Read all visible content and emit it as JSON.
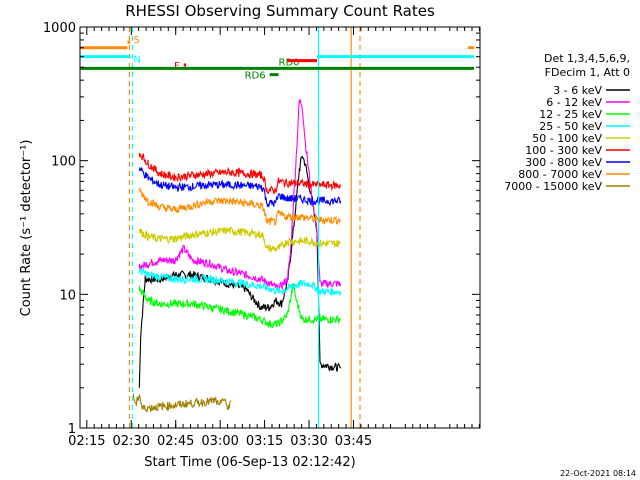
{
  "chart_data": {
    "type": "line",
    "title": "RHESSI Observing Summary Count Rates",
    "xlabel": "Start Time (06-Sep-13 02:12:42)",
    "ylabel": "Count Rate (s⁻¹ detector⁻¹)",
    "yscale": "log",
    "ylim": [
      1,
      1000
    ],
    "xlim_minutes": [
      0,
      135
    ],
    "x_ticks": [
      {
        "label": "02:15",
        "minute": 2.3
      },
      {
        "label": "02:30",
        "minute": 17.3
      },
      {
        "label": "02:45",
        "minute": 32.3
      },
      {
        "label": "03:00",
        "minute": 47.3
      },
      {
        "label": "03:15",
        "minute": 62.3
      },
      {
        "label": "03:30",
        "minute": 77.3
      },
      {
        "label": "03:45",
        "minute": 92.3
      }
    ],
    "y_ticks": [
      {
        "label": "1",
        "value": 1
      },
      {
        "label": "10",
        "value": 10
      },
      {
        "label": "100",
        "value": 100
      },
      {
        "label": "1000",
        "value": 1000
      }
    ],
    "legend_header": [
      "Det 1,3,4,5,6,9,",
      "FDecim 1, Att 0"
    ],
    "series": [
      {
        "name": "3 - 6 keV",
        "color": "#000000",
        "points": [
          [
            20,
            2
          ],
          [
            20.5,
            5
          ],
          [
            22,
            13
          ],
          [
            27,
            13
          ],
          [
            32,
            14
          ],
          [
            38,
            14
          ],
          [
            44,
            13
          ],
          [
            50,
            12
          ],
          [
            56,
            11
          ],
          [
            58,
            9.5
          ],
          [
            61,
            8
          ],
          [
            64,
            8
          ],
          [
            66,
            9
          ],
          [
            68,
            8.5
          ],
          [
            70,
            12
          ],
          [
            72,
            30
          ],
          [
            74,
            85
          ],
          [
            75,
            110
          ],
          [
            76,
            95
          ],
          [
            78,
            55
          ],
          [
            80,
            30
          ],
          [
            81,
            3
          ],
          [
            88,
            2.8
          ]
        ]
      },
      {
        "name": "6 - 12 keV",
        "color": "#ff00ff",
        "points": [
          [
            20,
            16
          ],
          [
            23,
            17
          ],
          [
            27,
            18
          ],
          [
            32,
            18
          ],
          [
            35,
            22
          ],
          [
            38,
            18
          ],
          [
            44,
            17
          ],
          [
            50,
            15
          ],
          [
            56,
            14
          ],
          [
            61,
            13
          ],
          [
            64,
            12
          ],
          [
            67,
            11
          ],
          [
            70,
            13
          ],
          [
            71,
            20
          ],
          [
            73,
            110
          ],
          [
            74,
            280
          ],
          [
            75,
            260
          ],
          [
            76,
            140
          ],
          [
            78,
            60
          ],
          [
            80,
            30
          ],
          [
            81,
            12
          ],
          [
            88,
            12
          ]
        ]
      },
      {
        "name": "12 - 25 keV",
        "color": "#00ff00",
        "points": [
          [
            20,
            11
          ],
          [
            23,
            9
          ],
          [
            27,
            8.5
          ],
          [
            32,
            8.5
          ],
          [
            38,
            8.5
          ],
          [
            44,
            8
          ],
          [
            50,
            7.5
          ],
          [
            56,
            7
          ],
          [
            61,
            6.5
          ],
          [
            64,
            6
          ],
          [
            67,
            6
          ],
          [
            70,
            7
          ],
          [
            72,
            12
          ],
          [
            73,
            9
          ],
          [
            75,
            6.5
          ],
          [
            81,
            6.5
          ],
          [
            88,
            6.5
          ]
        ]
      },
      {
        "name": "25 - 50 keV",
        "color": "#00ffff",
        "points": [
          [
            20,
            15
          ],
          [
            23,
            14
          ],
          [
            27,
            13.5
          ],
          [
            32,
            13
          ],
          [
            38,
            13
          ],
          [
            44,
            13
          ],
          [
            50,
            12.5
          ],
          [
            56,
            12
          ],
          [
            61,
            11.5
          ],
          [
            64,
            11
          ],
          [
            67,
            10.5
          ],
          [
            70,
            11
          ],
          [
            74,
            12
          ],
          [
            78,
            12
          ],
          [
            81,
            10.5
          ],
          [
            88,
            10.5
          ]
        ]
      },
      {
        "name": "50 - 100 keV",
        "color": "#cccc00",
        "points": [
          [
            20,
            30
          ],
          [
            23,
            27
          ],
          [
            27,
            26
          ],
          [
            32,
            26
          ],
          [
            38,
            28
          ],
          [
            44,
            29
          ],
          [
            50,
            30
          ],
          [
            56,
            29
          ],
          [
            61,
            28
          ],
          [
            62,
            27
          ],
          [
            63,
            22
          ],
          [
            64,
            22
          ],
          [
            67,
            22
          ],
          [
            70,
            25
          ],
          [
            74,
            25
          ],
          [
            78,
            25
          ],
          [
            81,
            24
          ],
          [
            88,
            24
          ]
        ]
      },
      {
        "name": "100 - 300 keV",
        "color": "#ff0000",
        "points": [
          [
            20,
            115
          ],
          [
            23,
            95
          ],
          [
            27,
            80
          ],
          [
            32,
            75
          ],
          [
            38,
            78
          ],
          [
            44,
            80
          ],
          [
            50,
            82
          ],
          [
            56,
            80
          ],
          [
            61,
            78
          ],
          [
            62,
            75
          ],
          [
            63,
            60
          ],
          [
            66,
            60
          ],
          [
            67,
            70
          ],
          [
            70,
            68
          ],
          [
            74,
            68
          ],
          [
            78,
            66
          ],
          [
            81,
            66
          ],
          [
            88,
            65
          ]
        ]
      },
      {
        "name": "300 - 800 keV",
        "color": "#0000ff",
        "points": [
          [
            20,
            88
          ],
          [
            23,
            74
          ],
          [
            27,
            66
          ],
          [
            32,
            63
          ],
          [
            38,
            64
          ],
          [
            44,
            66
          ],
          [
            50,
            66
          ],
          [
            56,
            65
          ],
          [
            61,
            64
          ],
          [
            62,
            62
          ],
          [
            63,
            48
          ],
          [
            66,
            48
          ],
          [
            67,
            55
          ],
          [
            70,
            52
          ],
          [
            74,
            52
          ],
          [
            78,
            50
          ],
          [
            81,
            50
          ],
          [
            88,
            50
          ]
        ]
      },
      {
        "name": "800 - 7000 keV",
        "color": "#ff8c00",
        "points": [
          [
            20,
            60
          ],
          [
            23,
            50
          ],
          [
            27,
            45
          ],
          [
            32,
            43
          ],
          [
            38,
            46
          ],
          [
            44,
            50
          ],
          [
            50,
            50
          ],
          [
            56,
            48
          ],
          [
            61,
            46
          ],
          [
            62,
            44
          ],
          [
            63,
            35
          ],
          [
            66,
            35
          ],
          [
            67,
            40
          ],
          [
            70,
            38
          ],
          [
            74,
            38
          ],
          [
            78,
            37
          ],
          [
            81,
            36
          ],
          [
            88,
            36
          ]
        ]
      },
      {
        "name": "7000 - 15000 keV",
        "color": "#a08000",
        "points": [
          [
            18,
            1.7
          ],
          [
            19,
            1.5
          ],
          [
            20,
            1.8
          ],
          [
            21,
            1.4
          ],
          [
            46,
            1.6
          ],
          [
            47,
            1.4
          ],
          [
            48,
            1.7
          ],
          [
            50,
            1.4
          ],
          [
            51,
            1.6
          ]
        ]
      }
    ],
    "flag_bars": [
      {
        "label": "",
        "color": "#ff8c00",
        "x_range": [
          0,
          16
        ],
        "value": 700
      },
      {
        "label": "S",
        "color": "#ff8c00",
        "x_range": [
          16,
          17
        ],
        "value": 770
      },
      {
        "label": "N",
        "color": "#00ffff",
        "x_range": [
          0,
          17
        ],
        "value": 600
      },
      {
        "label": "F",
        "color": "#ff0000",
        "x_range": [
          35,
          35.8
        ],
        "value": 520
      },
      {
        "label": "RD6",
        "color": "#008000",
        "x_range": [
          64,
          67
        ],
        "value": 440
      },
      {
        "label": "RD0",
        "color": "#008000",
        "x_range": [
          0,
          133
        ],
        "value": 490
      },
      {
        "label": "",
        "color": "#ff0000",
        "x_range": [
          70,
          80
        ],
        "value": 560
      },
      {
        "label": "",
        "color": "#00ffff",
        "x_range": [
          80,
          133
        ],
        "value": 600
      },
      {
        "label": "",
        "color": "#ff8c00",
        "x_range": [
          131,
          133
        ],
        "value": 700
      }
    ],
    "vertical_markers": [
      {
        "minute": 16.7,
        "color": "#ff8c00",
        "style": "dashed"
      },
      {
        "minute": 17.7,
        "color": "#00ffff",
        "style": "dashed"
      },
      {
        "minute": 80.5,
        "color": "#00ffff",
        "style": "solid"
      },
      {
        "minute": 91.5,
        "color": "#ff8c00",
        "style": "solid"
      },
      {
        "minute": 94.5,
        "color": "#ff8c00",
        "style": "dashed"
      }
    ],
    "timestamp": "22-Oct-2021 08:14"
  }
}
